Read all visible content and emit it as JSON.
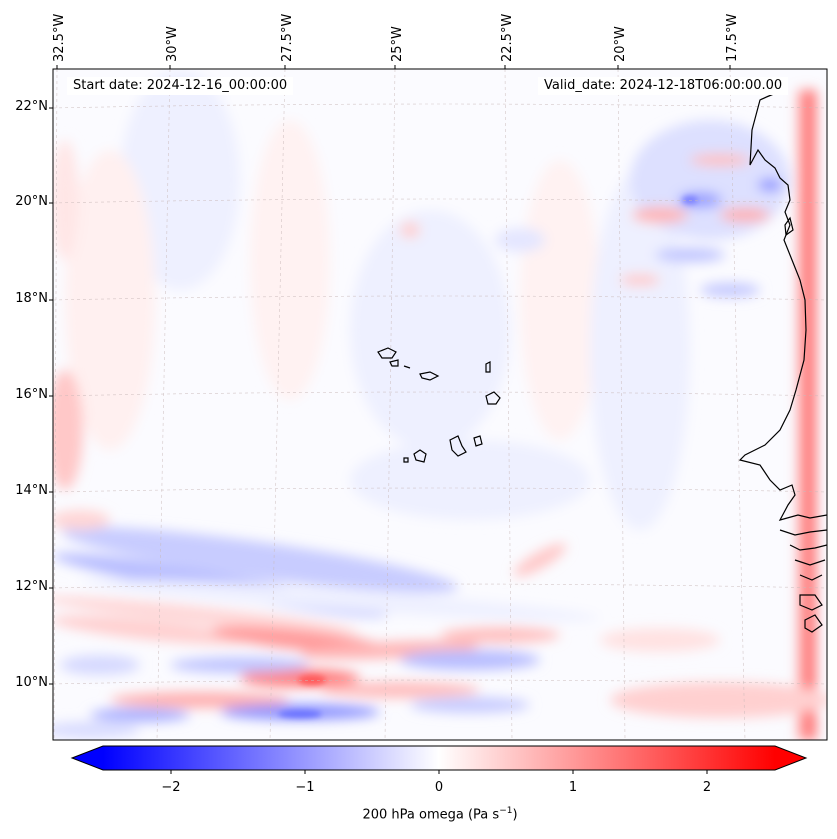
{
  "map": {
    "title_left": "Start date: 2024-12-16_00:00:00",
    "title_right": "Valid_date: 2024-12-18T06:00:00.00",
    "variable": "200 hPa omega",
    "units": "Pa s",
    "units_exponent": "−1",
    "lon_labels": [
      "32.5°W",
      "30°W",
      "27.5°W",
      "25°W",
      "22.5°W",
      "20°W",
      "17.5°W"
    ],
    "lat_labels": [
      "22°N",
      "20°N",
      "18°N",
      "16°N",
      "14°N",
      "12°N",
      "10°N"
    ],
    "colorbar": {
      "ticks": [
        "−2",
        "−1",
        "0",
        "1",
        "2"
      ],
      "tick_values": [
        -2,
        -1,
        0,
        1,
        2
      ],
      "vmin": -2.5,
      "vmax": 2.5,
      "cmap": "bwr",
      "color_low": "#0000ff",
      "color_mid": "#ffffff",
      "color_high": "#ff0000",
      "extend": "both"
    }
  }
}
